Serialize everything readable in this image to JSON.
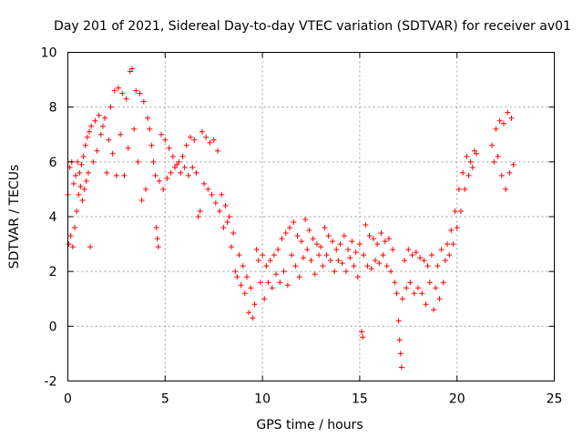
{
  "chart_data": {
    "type": "scatter",
    "title": "Day 201 of 2021, Sidereal Day-to-day VTEC variation (SDTVAR) for receiver av01",
    "xlabel": "GPS time / hours",
    "ylabel": "SDTVAR / TECUs",
    "xlim": [
      0,
      25
    ],
    "ylim": [
      -2,
      10
    ],
    "xticks": [
      0,
      5,
      10,
      15,
      20,
      25
    ],
    "xtick_labels": [
      "0",
      "5",
      "10",
      "15",
      "20",
      "25"
    ],
    "yticks": [
      -2,
      0,
      2,
      4,
      6,
      8,
      10
    ],
    "ytick_labels": [
      "-2",
      "0",
      "2",
      "4",
      "6",
      "8",
      "10"
    ],
    "grid": true,
    "marker": "+",
    "color": "#ff0000",
    "series": [
      {
        "name": "SDTVAR",
        "points": [
          [
            0.0,
            4.8
          ],
          [
            0.05,
            3.0
          ],
          [
            0.1,
            5.8
          ],
          [
            0.15,
            3.3
          ],
          [
            0.2,
            6.0
          ],
          [
            0.25,
            2.9
          ],
          [
            0.3,
            5.2
          ],
          [
            0.35,
            3.6
          ],
          [
            0.4,
            5.5
          ],
          [
            0.45,
            4.2
          ],
          [
            0.5,
            6.0
          ],
          [
            0.55,
            4.8
          ],
          [
            0.6,
            5.6
          ],
          [
            0.65,
            5.1
          ],
          [
            0.7,
            5.9
          ],
          [
            0.75,
            4.6
          ],
          [
            0.8,
            6.2
          ],
          [
            0.85,
            5.0
          ],
          [
            0.9,
            6.6
          ],
          [
            0.95,
            5.3
          ],
          [
            1.0,
            6.9
          ],
          [
            1.05,
            5.6
          ],
          [
            1.1,
            7.1
          ],
          [
            1.15,
            2.9
          ],
          [
            1.2,
            7.3
          ],
          [
            1.3,
            6.0
          ],
          [
            1.4,
            7.5
          ],
          [
            1.5,
            6.4
          ],
          [
            1.6,
            7.7
          ],
          [
            1.7,
            7.0
          ],
          [
            1.8,
            7.3
          ],
          [
            1.9,
            7.6
          ],
          [
            2.0,
            5.6
          ],
          [
            2.1,
            6.8
          ],
          [
            2.2,
            8.0
          ],
          [
            2.3,
            6.3
          ],
          [
            2.4,
            8.6
          ],
          [
            2.5,
            5.5
          ],
          [
            2.6,
            8.7
          ],
          [
            2.7,
            7.0
          ],
          [
            2.8,
            8.5
          ],
          [
            2.9,
            5.5
          ],
          [
            3.0,
            8.3
          ],
          [
            3.1,
            6.5
          ],
          [
            3.2,
            9.3
          ],
          [
            3.3,
            9.4
          ],
          [
            3.4,
            7.2
          ],
          [
            3.5,
            8.6
          ],
          [
            3.6,
            6.0
          ],
          [
            3.7,
            8.5
          ],
          [
            3.8,
            4.6
          ],
          [
            3.9,
            8.2
          ],
          [
            4.0,
            5.0
          ],
          [
            4.1,
            7.6
          ],
          [
            4.2,
            7.2
          ],
          [
            4.3,
            6.6
          ],
          [
            4.4,
            6.0
          ],
          [
            4.5,
            5.5
          ],
          [
            4.55,
            3.6
          ],
          [
            4.6,
            3.2
          ],
          [
            4.65,
            2.9
          ],
          [
            4.7,
            5.3
          ],
          [
            4.8,
            7.0
          ],
          [
            4.9,
            5.0
          ],
          [
            5.0,
            6.8
          ],
          [
            5.1,
            5.4
          ],
          [
            5.2,
            6.5
          ],
          [
            5.3,
            5.6
          ],
          [
            5.4,
            6.2
          ],
          [
            5.5,
            5.8
          ],
          [
            5.6,
            5.9
          ],
          [
            5.7,
            6.0
          ],
          [
            5.8,
            5.6
          ],
          [
            5.9,
            6.2
          ],
          [
            6.0,
            5.8
          ],
          [
            6.1,
            6.6
          ],
          [
            6.2,
            5.5
          ],
          [
            6.3,
            6.9
          ],
          [
            6.4,
            5.8
          ],
          [
            6.5,
            6.8
          ],
          [
            6.6,
            5.6
          ],
          [
            6.7,
            4.0
          ],
          [
            6.8,
            4.2
          ],
          [
            6.9,
            7.1
          ],
          [
            7.0,
            5.2
          ],
          [
            7.1,
            6.9
          ],
          [
            7.2,
            5.0
          ],
          [
            7.3,
            6.7
          ],
          [
            7.4,
            4.8
          ],
          [
            7.5,
            6.8
          ],
          [
            7.6,
            4.5
          ],
          [
            7.7,
            6.4
          ],
          [
            7.8,
            4.2
          ],
          [
            7.9,
            4.8
          ],
          [
            8.0,
            3.6
          ],
          [
            8.1,
            4.4
          ],
          [
            8.2,
            3.8
          ],
          [
            8.3,
            4.0
          ],
          [
            8.4,
            2.9
          ],
          [
            8.5,
            3.4
          ],
          [
            8.6,
            2.0
          ],
          [
            8.7,
            1.8
          ],
          [
            8.8,
            2.6
          ],
          [
            8.9,
            1.5
          ],
          [
            9.0,
            2.2
          ],
          [
            9.1,
            1.2
          ],
          [
            9.2,
            1.8
          ],
          [
            9.3,
            0.5
          ],
          [
            9.4,
            1.4
          ],
          [
            9.5,
            0.3
          ],
          [
            9.6,
            0.8
          ],
          [
            9.7,
            2.8
          ],
          [
            9.8,
            2.4
          ],
          [
            9.9,
            1.6
          ],
          [
            10.0,
            2.6
          ],
          [
            10.1,
            1.0
          ],
          [
            10.2,
            2.2
          ],
          [
            10.3,
            1.6
          ],
          [
            10.4,
            2.4
          ],
          [
            10.5,
            1.4
          ],
          [
            10.6,
            2.6
          ],
          [
            10.7,
            1.9
          ],
          [
            10.8,
            2.8
          ],
          [
            10.9,
            1.6
          ],
          [
            11.0,
            3.2
          ],
          [
            11.1,
            2.0
          ],
          [
            11.2,
            3.4
          ],
          [
            11.3,
            1.5
          ],
          [
            11.4,
            3.6
          ],
          [
            11.5,
            2.6
          ],
          [
            11.6,
            3.8
          ],
          [
            11.7,
            2.2
          ],
          [
            11.8,
            3.3
          ],
          [
            11.9,
            1.8
          ],
          [
            12.0,
            3.1
          ],
          [
            12.1,
            2.5
          ],
          [
            12.2,
            3.9
          ],
          [
            12.3,
            2.8
          ],
          [
            12.4,
            3.5
          ],
          [
            12.5,
            2.4
          ],
          [
            12.6,
            3.2
          ],
          [
            12.7,
            1.9
          ],
          [
            12.8,
            3.0
          ],
          [
            12.9,
            2.6
          ],
          [
            13.0,
            2.9
          ],
          [
            13.1,
            2.2
          ],
          [
            13.2,
            3.6
          ],
          [
            13.3,
            2.6
          ],
          [
            13.4,
            3.3
          ],
          [
            13.5,
            2.4
          ],
          [
            13.6,
            3.1
          ],
          [
            13.7,
            2.0
          ],
          [
            13.8,
            2.8
          ],
          [
            13.9,
            2.4
          ],
          [
            14.0,
            3.0
          ],
          [
            14.1,
            2.3
          ],
          [
            14.2,
            3.3
          ],
          [
            14.3,
            2.0
          ],
          [
            14.4,
            2.8
          ],
          [
            14.5,
            2.5
          ],
          [
            14.6,
            3.1
          ],
          [
            14.7,
            2.2
          ],
          [
            14.8,
            2.7
          ],
          [
            14.9,
            1.8
          ],
          [
            15.0,
            3.0
          ],
          [
            15.1,
            -0.2
          ],
          [
            15.15,
            -0.4
          ],
          [
            15.2,
            2.6
          ],
          [
            15.3,
            3.7
          ],
          [
            15.4,
            2.2
          ],
          [
            15.5,
            3.3
          ],
          [
            15.6,
            2.1
          ],
          [
            15.7,
            3.2
          ],
          [
            15.8,
            2.4
          ],
          [
            15.9,
            3.0
          ],
          [
            16.0,
            2.3
          ],
          [
            16.1,
            3.4
          ],
          [
            16.2,
            2.6
          ],
          [
            16.3,
            3.1
          ],
          [
            16.4,
            2.2
          ],
          [
            16.5,
            3.2
          ],
          [
            16.6,
            2.0
          ],
          [
            16.7,
            2.8
          ],
          [
            16.8,
            1.6
          ],
          [
            16.9,
            1.2
          ],
          [
            17.0,
            0.2
          ],
          [
            17.05,
            -0.5
          ],
          [
            17.1,
            -1.0
          ],
          [
            17.15,
            -1.5
          ],
          [
            17.2,
            1.0
          ],
          [
            17.3,
            2.4
          ],
          [
            17.4,
            1.4
          ],
          [
            17.5,
            2.8
          ],
          [
            17.6,
            1.6
          ],
          [
            17.7,
            2.6
          ],
          [
            17.8,
            1.2
          ],
          [
            17.9,
            2.7
          ],
          [
            18.0,
            1.4
          ],
          [
            18.1,
            2.5
          ],
          [
            18.2,
            1.2
          ],
          [
            18.3,
            2.4
          ],
          [
            18.4,
            0.8
          ],
          [
            18.5,
            2.2
          ],
          [
            18.6,
            1.6
          ],
          [
            18.7,
            2.6
          ],
          [
            18.8,
            0.6
          ],
          [
            18.9,
            1.4
          ],
          [
            19.0,
            2.2
          ],
          [
            19.1,
            1.0
          ],
          [
            19.2,
            2.8
          ],
          [
            19.3,
            1.6
          ],
          [
            19.4,
            2.4
          ],
          [
            19.5,
            3.0
          ],
          [
            19.6,
            2.6
          ],
          [
            19.7,
            3.5
          ],
          [
            19.8,
            3.0
          ],
          [
            19.9,
            4.2
          ],
          [
            20.0,
            3.6
          ],
          [
            20.1,
            5.0
          ],
          [
            20.2,
            4.2
          ],
          [
            20.3,
            5.6
          ],
          [
            20.4,
            5.0
          ],
          [
            20.5,
            6.2
          ],
          [
            20.6,
            5.5
          ],
          [
            20.7,
            6.0
          ],
          [
            20.8,
            5.8
          ],
          [
            20.9,
            6.4
          ],
          [
            21.0,
            6.3
          ],
          [
            21.8,
            6.6
          ],
          [
            21.9,
            6.0
          ],
          [
            22.0,
            7.2
          ],
          [
            22.1,
            6.2
          ],
          [
            22.2,
            7.5
          ],
          [
            22.3,
            5.5
          ],
          [
            22.4,
            7.4
          ],
          [
            22.5,
            5.0
          ],
          [
            22.6,
            7.8
          ],
          [
            22.7,
            5.6
          ],
          [
            22.8,
            7.6
          ],
          [
            22.9,
            5.9
          ]
        ]
      }
    ]
  }
}
